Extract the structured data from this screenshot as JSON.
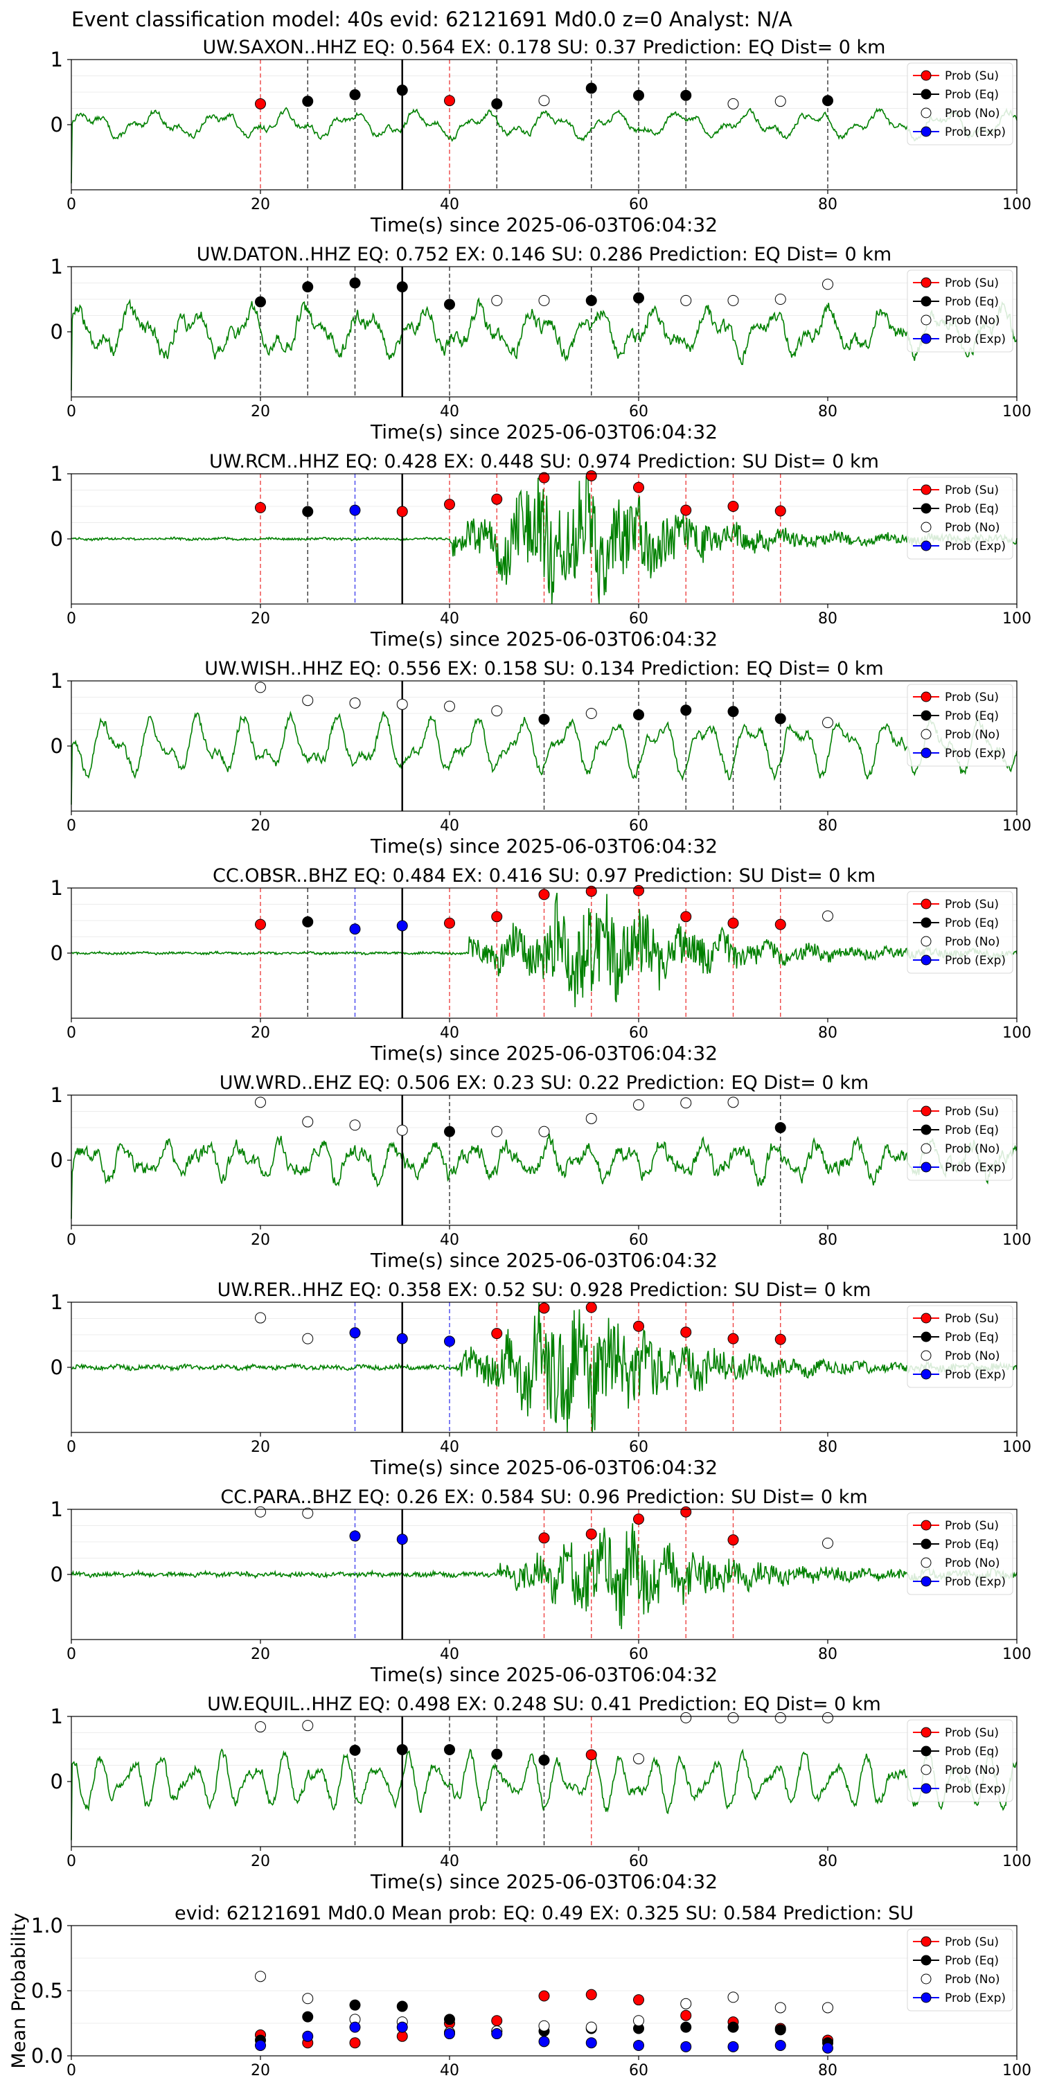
{
  "suptitle": "Event classification model: 40s evid: 62121691 Md0.0 z=0 Analyst: N/A",
  "xlabel": "Time(s) since 2025-06-03T06:04:32",
  "legend": [
    "Prob (Su)",
    "Prob (Eq)",
    "Prob (No)",
    "Prob (Exp)"
  ],
  "colors": {
    "su": "#ff0000",
    "eq": "#000000",
    "no": "#ffffff",
    "exp": "#0000ff",
    "trace": "#008000"
  },
  "chart_data": [
    {
      "type": "line",
      "title": "UW.SAXON..HHZ   EQ: 0.564  EX: 0.178  SU: 0.37   Prediction: EQ    Dist= 0 km",
      "xlim": [
        0,
        100
      ],
      "ylim": [
        -1,
        1
      ],
      "yticks": [
        0,
        1
      ],
      "xticks": [
        0,
        20,
        40,
        60,
        80,
        100
      ],
      "pick_time": 35,
      "amp": 0.25,
      "onset": null,
      "noise": 0.2,
      "points": [
        [
          20,
          "su",
          0.32
        ],
        [
          25,
          "eq",
          0.36
        ],
        [
          30,
          "eq",
          0.46
        ],
        [
          35,
          "eq",
          0.53
        ],
        [
          40,
          "su",
          0.37
        ],
        [
          45,
          "eq",
          0.32
        ],
        [
          50,
          "no",
          0.37
        ],
        [
          55,
          "eq",
          0.56
        ],
        [
          60,
          "eq",
          0.45
        ],
        [
          65,
          "eq",
          0.45
        ],
        [
          70,
          "no",
          0.32
        ],
        [
          75,
          "no",
          0.36
        ],
        [
          80,
          "eq",
          0.37
        ]
      ]
    },
    {
      "type": "line",
      "title": "UW.DATON..HHZ   EQ: 0.752  EX: 0.146  SU: 0.286   Prediction: EQ    Dist= 0 km",
      "xlim": [
        0,
        100
      ],
      "ylim": [
        -1,
        1
      ],
      "yticks": [
        0,
        1
      ],
      "xticks": [
        0,
        20,
        40,
        60,
        80,
        100
      ],
      "pick_time": 35,
      "amp": 0.45,
      "onset": null,
      "noise": 0.45,
      "points": [
        [
          20,
          "eq",
          0.46
        ],
        [
          25,
          "eq",
          0.69
        ],
        [
          30,
          "eq",
          0.75
        ],
        [
          35,
          "eq",
          0.69
        ],
        [
          40,
          "eq",
          0.42
        ],
        [
          45,
          "no",
          0.48
        ],
        [
          50,
          "no",
          0.48
        ],
        [
          55,
          "eq",
          0.48
        ],
        [
          60,
          "eq",
          0.52
        ],
        [
          65,
          "no",
          0.48
        ],
        [
          70,
          "no",
          0.48
        ],
        [
          75,
          "no",
          0.5
        ],
        [
          80,
          "no",
          0.73
        ]
      ]
    },
    {
      "type": "line",
      "title": "UW.RCM..HHZ   EQ: 0.428  EX: 0.448  SU: 0.974   Prediction: SU    Dist= 0 km",
      "xlim": [
        0,
        100
      ],
      "ylim": [
        -1,
        1
      ],
      "yticks": [
        0,
        1
      ],
      "xticks": [
        0,
        20,
        40,
        60,
        80,
        100
      ],
      "pick_time": 35,
      "amp": 0.02,
      "onset": [
        40,
        50,
        55,
        0.95
      ],
      "noise": 0.4,
      "points": [
        [
          20,
          "su",
          0.48
        ],
        [
          25,
          "eq",
          0.42
        ],
        [
          30,
          "exp",
          0.44
        ],
        [
          35,
          "su",
          0.42
        ],
        [
          40,
          "su",
          0.53
        ],
        [
          45,
          "su",
          0.61
        ],
        [
          50,
          "su",
          0.94
        ],
        [
          55,
          "su",
          0.97
        ],
        [
          60,
          "su",
          0.79
        ],
        [
          65,
          "su",
          0.44
        ],
        [
          70,
          "su",
          0.5
        ],
        [
          75,
          "su",
          0.43
        ]
      ]
    },
    {
      "type": "line",
      "title": "UW.WISH..HHZ   EQ: 0.556  EX: 0.158  SU: 0.134   Prediction: EQ    Dist= 0 km",
      "xlim": [
        0,
        100
      ],
      "ylim": [
        -1,
        1
      ],
      "yticks": [
        0,
        1
      ],
      "xticks": [
        0,
        20,
        40,
        60,
        80,
        100
      ],
      "pick_time": 35,
      "amp": 0.55,
      "onset": null,
      "noise": 0.05,
      "points": [
        [
          20,
          "no",
          0.9
        ],
        [
          25,
          "no",
          0.7
        ],
        [
          30,
          "no",
          0.66
        ],
        [
          35,
          "no",
          0.64
        ],
        [
          40,
          "no",
          0.61
        ],
        [
          45,
          "no",
          0.54
        ],
        [
          50,
          "eq",
          0.41
        ],
        [
          55,
          "no",
          0.5
        ],
        [
          60,
          "eq",
          0.48
        ],
        [
          65,
          "eq",
          0.55
        ],
        [
          70,
          "eq",
          0.53
        ],
        [
          75,
          "eq",
          0.42
        ],
        [
          80,
          "no",
          0.36
        ]
      ]
    },
    {
      "type": "line",
      "title": "CC.OBSR..BHZ   EQ: 0.484  EX: 0.416  SU: 0.97   Prediction: SU    Dist= 0 km",
      "xlim": [
        0,
        100
      ],
      "ylim": [
        -1,
        1
      ],
      "yticks": [
        0,
        1
      ],
      "xticks": [
        0,
        20,
        40,
        60,
        80,
        100
      ],
      "pick_time": 35,
      "amp": 0.02,
      "onset": [
        42,
        52,
        57,
        0.8
      ],
      "noise": 0.35,
      "points": [
        [
          20,
          "su",
          0.44
        ],
        [
          25,
          "eq",
          0.48
        ],
        [
          30,
          "exp",
          0.37
        ],
        [
          35,
          "exp",
          0.42
        ],
        [
          40,
          "su",
          0.46
        ],
        [
          45,
          "su",
          0.56
        ],
        [
          50,
          "su",
          0.9
        ],
        [
          55,
          "su",
          0.95
        ],
        [
          60,
          "su",
          0.96
        ],
        [
          65,
          "su",
          0.56
        ],
        [
          70,
          "su",
          0.46
        ],
        [
          75,
          "su",
          0.44
        ],
        [
          80,
          "no",
          0.57
        ]
      ]
    },
    {
      "type": "line",
      "title": "UW.WRD..EHZ   EQ: 0.506  EX: 0.23  SU: 0.22   Prediction: EQ    Dist= 0 km",
      "xlim": [
        0,
        100
      ],
      "ylim": [
        -1,
        1
      ],
      "yticks": [
        0,
        1
      ],
      "xticks": [
        0,
        20,
        40,
        60,
        80,
        100
      ],
      "pick_time": 35,
      "amp": 0.35,
      "onset": null,
      "noise": 0.9,
      "points": [
        [
          20,
          "no",
          0.89
        ],
        [
          25,
          "no",
          0.59
        ],
        [
          30,
          "no",
          0.54
        ],
        [
          35,
          "no",
          0.46
        ],
        [
          40,
          "eq",
          0.44
        ],
        [
          45,
          "no",
          0.44
        ],
        [
          50,
          "no",
          0.44
        ],
        [
          55,
          "no",
          0.64
        ],
        [
          60,
          "no",
          0.85
        ],
        [
          65,
          "no",
          0.88
        ],
        [
          70,
          "no",
          0.89
        ],
        [
          75,
          "eq",
          0.5
        ]
      ]
    },
    {
      "type": "line",
      "title": "UW.RER..HHZ   EQ: 0.358  EX: 0.52  SU: 0.928   Prediction: SU    Dist= 0 km",
      "xlim": [
        0,
        100
      ],
      "ylim": [
        -1,
        1
      ],
      "yticks": [
        0,
        1
      ],
      "xticks": [
        0,
        20,
        40,
        60,
        80,
        100
      ],
      "pick_time": 35,
      "amp": 0.04,
      "onset": [
        41,
        50,
        55,
        0.9
      ],
      "noise": 0.4,
      "points": [
        [
          20,
          "no",
          0.76
        ],
        [
          25,
          "no",
          0.44
        ],
        [
          30,
          "exp",
          0.53
        ],
        [
          35,
          "exp",
          0.44
        ],
        [
          40,
          "exp",
          0.4
        ],
        [
          45,
          "su",
          0.52
        ],
        [
          50,
          "su",
          0.91
        ],
        [
          55,
          "su",
          0.92
        ],
        [
          60,
          "su",
          0.63
        ],
        [
          65,
          "su",
          0.54
        ],
        [
          70,
          "su",
          0.44
        ],
        [
          75,
          "su",
          0.43
        ]
      ]
    },
    {
      "type": "line",
      "title": "CC.PARA..BHZ   EQ: 0.26  EX: 0.584  SU: 0.96   Prediction: SU    Dist= 0 km",
      "xlim": [
        0,
        100
      ],
      "ylim": [
        -1,
        1
      ],
      "yticks": [
        0,
        1
      ],
      "xticks": [
        0,
        20,
        40,
        60,
        80,
        100
      ],
      "pick_time": 35,
      "amp": 0.04,
      "onset": [
        45,
        55,
        58,
        0.7
      ],
      "noise": 0.3,
      "points": [
        [
          20,
          "no",
          0.96
        ],
        [
          25,
          "no",
          0.94
        ],
        [
          30,
          "exp",
          0.59
        ],
        [
          35,
          "exp",
          0.54
        ],
        [
          50,
          "su",
          0.56
        ],
        [
          55,
          "su",
          0.62
        ],
        [
          60,
          "su",
          0.85
        ],
        [
          65,
          "su",
          0.96
        ],
        [
          70,
          "su",
          0.53
        ],
        [
          80,
          "no",
          0.48
        ]
      ]
    },
    {
      "type": "line",
      "title": "UW.EQUIL..HHZ   EQ: 0.498  EX: 0.248  SU: 0.41   Prediction: EQ    Dist= 0 km",
      "xlim": [
        0,
        100
      ],
      "ylim": [
        -1,
        1
      ],
      "yticks": [
        0,
        1
      ],
      "xticks": [
        0,
        20,
        40,
        60,
        80,
        100
      ],
      "pick_time": 35,
      "amp": 0.5,
      "onset": null,
      "noise": 0.15,
      "points": [
        [
          20,
          "no",
          0.84
        ],
        [
          25,
          "no",
          0.86
        ],
        [
          30,
          "eq",
          0.48
        ],
        [
          35,
          "eq",
          0.49
        ],
        [
          40,
          "eq",
          0.49
        ],
        [
          45,
          "eq",
          0.42
        ],
        [
          50,
          "eq",
          0.33
        ],
        [
          55,
          "su",
          0.41
        ],
        [
          60,
          "no",
          0.35
        ],
        [
          65,
          "no",
          0.98
        ],
        [
          70,
          "no",
          0.98
        ],
        [
          75,
          "no",
          0.98
        ],
        [
          80,
          "no",
          0.98
        ]
      ]
    },
    {
      "type": "scatter",
      "title": "evid: 62121691  Md0.0   Mean prob:   EQ: 0.49  EX: 0.325  SU: 0.584   Prediction: SU",
      "ylabel": "Mean Probability",
      "xlim": [
        0,
        100
      ],
      "ylim": [
        0,
        1
      ],
      "yticks": [
        0,
        0.5,
        1
      ],
      "ytick_labels": [
        "0.0",
        "0.5",
        "1.0"
      ],
      "xticks": [
        0,
        20,
        40,
        60,
        80,
        100
      ],
      "series": [
        {
          "name": "Prob (Su)",
          "key": "su",
          "x": [
            20,
            25,
            30,
            35,
            40,
            45,
            50,
            55,
            60,
            65,
            70,
            75,
            80
          ],
          "y": [
            0.16,
            0.1,
            0.1,
            0.15,
            0.25,
            0.27,
            0.46,
            0.47,
            0.43,
            0.31,
            0.26,
            0.21,
            0.12
          ]
        },
        {
          "name": "Prob (Eq)",
          "key": "eq",
          "x": [
            20,
            25,
            30,
            35,
            40,
            45,
            50,
            55,
            60,
            65,
            70,
            75,
            80
          ],
          "y": [
            0.12,
            0.3,
            0.39,
            0.38,
            0.28,
            0.19,
            0.19,
            0.21,
            0.21,
            0.22,
            0.22,
            0.2,
            0.1
          ]
        },
        {
          "name": "Prob (No)",
          "key": "no",
          "x": [
            20,
            25,
            30,
            35,
            40,
            45,
            50,
            55,
            60,
            65,
            70,
            75,
            80
          ],
          "y": [
            0.61,
            0.44,
            0.28,
            0.26,
            0.18,
            0.19,
            0.23,
            0.22,
            0.27,
            0.4,
            0.45,
            0.37,
            0.37
          ]
        },
        {
          "name": "Prob (Exp)",
          "key": "exp",
          "x": [
            20,
            25,
            30,
            35,
            40,
            45,
            50,
            55,
            60,
            65,
            70,
            75,
            80
          ],
          "y": [
            0.08,
            0.15,
            0.22,
            0.22,
            0.17,
            0.17,
            0.11,
            0.1,
            0.08,
            0.07,
            0.07,
            0.08,
            0.06
          ]
        }
      ]
    }
  ]
}
